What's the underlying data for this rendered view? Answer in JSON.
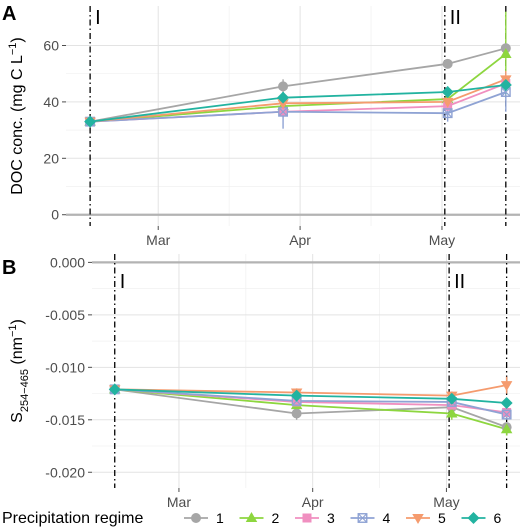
{
  "chart_data": [
    {
      "panel_label": "A",
      "type": "line",
      "ylabel_parts": {
        "main": "DOC conc. (mg C L",
        "sup": "−1",
        "close": ")"
      },
      "x_ticks": [
        {
          "label": "Mar",
          "x": 1
        },
        {
          "label": "Apr",
          "x": 2
        },
        {
          "label": "May",
          "x": 3
        }
      ],
      "xlim": [
        0.35,
        3.55
      ],
      "ylim": [
        -4,
        74
      ],
      "y_ticks": [
        {
          "value": 0,
          "label": "0"
        },
        {
          "value": 20,
          "label": "20"
        },
        {
          "value": 40,
          "label": "40"
        },
        {
          "value": 60,
          "label": "60"
        }
      ],
      "zero_line": 0,
      "events": [
        {
          "label": "I",
          "x": 0.52
        },
        {
          "label": "II",
          "x": 3.02
        },
        {
          "label": "",
          "x": 3.45
        }
      ],
      "x": [
        0.52,
        1.88,
        3.04,
        3.45
      ],
      "series": [
        {
          "name": "1",
          "color": "#A6A6A6",
          "marker": "circle",
          "values": [
            33,
            45.5,
            53.5,
            59
          ],
          "err": [
            1,
            2.5,
            1.5,
            2.5
          ]
        },
        {
          "name": "2",
          "color": "#8DD63F",
          "marker": "triangle-up",
          "values": [
            33,
            38.5,
            41,
            57
          ],
          "err": [
            1,
            3,
            3,
            15
          ]
        },
        {
          "name": "3",
          "color": "#F08FC0",
          "marker": "square",
          "values": [
            33,
            36.5,
            38.5,
            46.5
          ],
          "err": [
            1,
            2,
            2,
            3
          ]
        },
        {
          "name": "4",
          "color": "#8FA3D4",
          "marker": "square-cross",
          "values": [
            33,
            36.5,
            36,
            43.5
          ],
          "err": [
            1,
            6,
            3,
            7
          ]
        },
        {
          "name": "5",
          "color": "#F59B6E",
          "marker": "triangle-down",
          "values": [
            33,
            39.5,
            40,
            48
          ],
          "err": [
            1,
            3,
            3,
            3
          ]
        },
        {
          "name": "6",
          "color": "#22B3A0",
          "marker": "diamond",
          "values": [
            33,
            41.5,
            43.5,
            46
          ],
          "err": [
            1,
            2,
            2,
            3
          ]
        }
      ]
    },
    {
      "panel_label": "B",
      "type": "line",
      "ylabel_parts": {
        "main": "S",
        "sub": "254−465",
        "mid": " (nm",
        "sup": "−1",
        "close": ")"
      },
      "x_ticks": [
        {
          "label": "Mar",
          "x": 1
        },
        {
          "label": "Apr",
          "x": 2
        },
        {
          "label": "May",
          "x": 3
        }
      ],
      "xlim": [
        0.35,
        3.55
      ],
      "ylim": [
        -0.0215,
        0.0008
      ],
      "y_ticks": [
        {
          "value": 0,
          "label": "0.000"
        },
        {
          "value": -0.005,
          "label": "-0.005"
        },
        {
          "value": -0.01,
          "label": "-0.010"
        },
        {
          "value": -0.015,
          "label": "-0.015"
        },
        {
          "value": -0.02,
          "label": "-0.020"
        }
      ],
      "zero_line": 0,
      "events": [
        {
          "label": "I",
          "x": 0.52
        },
        {
          "label": "II",
          "x": 3.02
        },
        {
          "label": "",
          "x": 3.45
        }
      ],
      "x": [
        0.52,
        1.88,
        3.04,
        3.45
      ],
      "series": [
        {
          "name": "1",
          "color": "#A6A6A6",
          "marker": "circle",
          "values": [
            -0.0121,
            -0.0144,
            -0.0138,
            -0.0157
          ],
          "err": [
            0.0002,
            0.0006,
            0.0004,
            0.0004
          ]
        },
        {
          "name": "2",
          "color": "#8DD63F",
          "marker": "triangle-up",
          "values": [
            -0.0121,
            -0.0136,
            -0.0144,
            -0.0159
          ],
          "err": [
            0.0002,
            0.0011,
            0.0006,
            0.0006
          ]
        },
        {
          "name": "3",
          "color": "#F08FC0",
          "marker": "square",
          "values": [
            -0.0121,
            -0.0133,
            -0.0136,
            -0.0143
          ],
          "err": [
            0.0002,
            0.0004,
            0.0005,
            0.0005
          ]
        },
        {
          "name": "4",
          "color": "#8FA3D4",
          "marker": "square-cross",
          "values": [
            -0.0121,
            -0.0132,
            -0.0133,
            -0.0145
          ],
          "err": [
            0.0002,
            0.0004,
            0.0005,
            0.0005
          ]
        },
        {
          "name": "5",
          "color": "#F59B6E",
          "marker": "triangle-down",
          "values": [
            -0.0121,
            -0.0124,
            -0.0127,
            -0.0117
          ],
          "err": [
            0.0002,
            0.0004,
            0.0004,
            0.0008
          ]
        },
        {
          "name": "6",
          "color": "#22B3A0",
          "marker": "diamond",
          "values": [
            -0.0121,
            -0.0127,
            -0.013,
            -0.0134
          ],
          "err": [
            0.0002,
            0.0003,
            0.0003,
            0.0004
          ]
        }
      ]
    }
  ],
  "legend": {
    "title": "Precipitation regime",
    "placement": "bottom",
    "items": [
      {
        "label": "1",
        "color": "#A6A6A6",
        "marker": "circle"
      },
      {
        "label": "2",
        "color": "#8DD63F",
        "marker": "triangle-up"
      },
      {
        "label": "3",
        "color": "#F08FC0",
        "marker": "square"
      },
      {
        "label": "4",
        "color": "#8FA3D4",
        "marker": "square-cross"
      },
      {
        "label": "5",
        "color": "#F59B6E",
        "marker": "triangle-down"
      },
      {
        "label": "6",
        "color": "#22B3A0",
        "marker": "diamond"
      }
    ]
  }
}
